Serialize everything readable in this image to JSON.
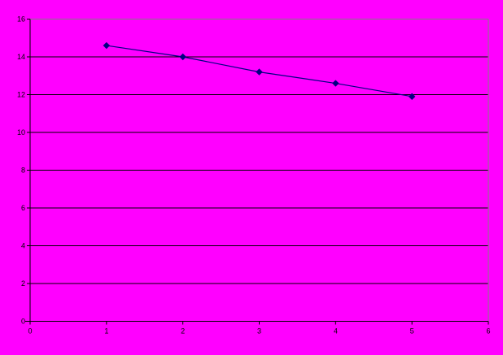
{
  "chart_data": {
    "type": "line",
    "title": "",
    "xlabel": "",
    "ylabel": "",
    "legend": "none",
    "x": [
      1,
      2,
      3,
      4,
      5
    ],
    "series": [
      {
        "name": "series-1",
        "values": [
          14.6,
          14.0,
          13.2,
          12.6,
          11.9
        ]
      }
    ],
    "xlim": [
      0,
      6
    ],
    "ylim": [
      0,
      16
    ],
    "x_ticks": [
      0,
      1,
      2,
      3,
      4,
      5,
      6
    ],
    "y_ticks": [
      0,
      2,
      4,
      6,
      8,
      10,
      12,
      14,
      16
    ],
    "grid": "horizontal",
    "marker": "diamond",
    "colors": {
      "background": "#ff00ff",
      "series_line": "#000080",
      "marker_fill": "#000080",
      "gridline": "#000000",
      "axis": "#000000",
      "plot_border": "#808080",
      "tick_label": "#000000"
    }
  }
}
